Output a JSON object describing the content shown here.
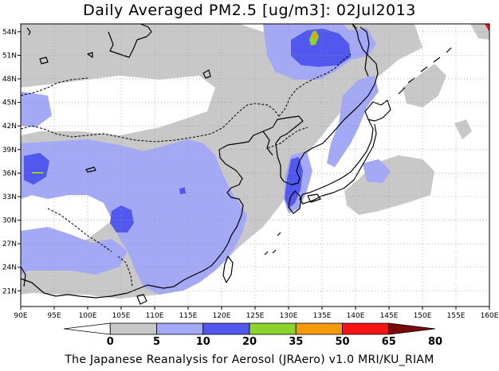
{
  "title": "Daily Averaged PM2.5 [ug/m3]: 02Jul2013",
  "footer": "The Japanese Reanalysis for Aerosol (JRAero) v1.0 MRI/KU_RIAM",
  "map": {
    "lon_range": [
      90,
      160
    ],
    "lat_range": [
      19,
      55
    ],
    "lon_ticks": [
      "90E",
      "95E",
      "100E",
      "105E",
      "110E",
      "115E",
      "120E",
      "125E",
      "130E",
      "135E",
      "140E",
      "145E",
      "150E",
      "155E",
      "160E"
    ],
    "lat_ticks": [
      "54N",
      "51N",
      "48N",
      "45N",
      "42N",
      "39N",
      "36N",
      "33N",
      "30N",
      "27N",
      "24N",
      "21N"
    ]
  },
  "colorbar": {
    "labels": [
      "0",
      "5",
      "10",
      "20",
      "35",
      "50",
      "65",
      "80"
    ],
    "colors": [
      "#ffffff",
      "#c8c8c8",
      "#a3a9f4",
      "#5258ee",
      "#8cd32c",
      "#f59b0a",
      "#f51414",
      "#7a0a0a"
    ]
  }
}
